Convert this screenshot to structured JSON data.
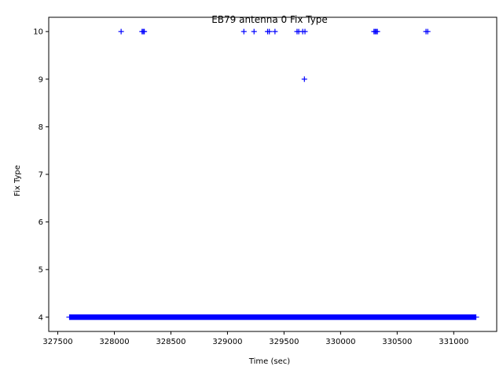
{
  "chart_data": {
    "type": "scatter",
    "title": "EB79 antenna 0 Fix Type",
    "xlabel": "Time (sec)",
    "ylabel": "Fix Type",
    "xlim": [
      327420,
      331380
    ],
    "ylim": [
      3.7,
      10.3
    ],
    "xticks": [
      "327500",
      "328000",
      "328500",
      "329000",
      "329500",
      "330000",
      "330500",
      "331000"
    ],
    "yticks": [
      "4",
      "5",
      "6",
      "7",
      "8",
      "9",
      "10"
    ],
    "marker": "+",
    "color": "#0000ff",
    "grid": false,
    "series": [
      {
        "segments": [
          {
            "y": 4,
            "x_from": 327600,
            "x_to": 331200
          }
        ],
        "points": [
          {
            "x": 328060,
            "y": 10
          },
          {
            "x": 328245,
            "y": 10
          },
          {
            "x": 328255,
            "y": 10
          },
          {
            "x": 328265,
            "y": 10
          },
          {
            "x": 329145,
            "y": 10
          },
          {
            "x": 329235,
            "y": 10
          },
          {
            "x": 329355,
            "y": 10
          },
          {
            "x": 329370,
            "y": 10
          },
          {
            "x": 329420,
            "y": 10
          },
          {
            "x": 329615,
            "y": 10
          },
          {
            "x": 329630,
            "y": 10
          },
          {
            "x": 329665,
            "y": 10
          },
          {
            "x": 329685,
            "y": 10
          },
          {
            "x": 329680,
            "y": 9
          },
          {
            "x": 330295,
            "y": 10
          },
          {
            "x": 330305,
            "y": 10
          },
          {
            "x": 330315,
            "y": 10
          },
          {
            "x": 330325,
            "y": 10
          },
          {
            "x": 330755,
            "y": 10
          },
          {
            "x": 330770,
            "y": 10
          }
        ]
      }
    ]
  }
}
